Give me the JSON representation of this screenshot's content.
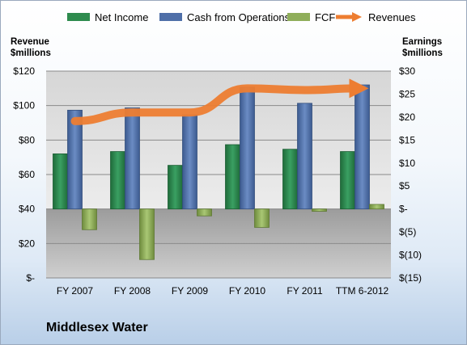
{
  "legend": [
    {
      "key": "net_income",
      "label": "Net Income",
      "color": "#2e8b4e"
    },
    {
      "key": "cfo",
      "label": "Cash from Operations",
      "color": "#4f6fa8"
    },
    {
      "key": "fcf",
      "label": "FCF",
      "color": "#8fae5a"
    },
    {
      "key": "revenues",
      "label": "Revenues",
      "color": "#ed7d31"
    }
  ],
  "left_axis_title": [
    "Revenue",
    "$millions"
  ],
  "right_axis_title": [
    "Earnings",
    "$millions"
  ],
  "company": "Middlesex Water",
  "chart_data": {
    "type": "bar",
    "categories": [
      "FY 2007",
      "FY 2008",
      "FY 2009",
      "FY 2010",
      "FY 2011",
      "TTM 6-2012"
    ],
    "left_axis": {
      "label": "Revenue $millions",
      "range": [
        0,
        120
      ],
      "ticks": [
        "$-",
        "$20",
        "$40",
        "$60",
        "$80",
        "$100",
        "$120"
      ]
    },
    "right_axis": {
      "label": "Earnings $millions",
      "range": [
        -15,
        30
      ],
      "ticks": [
        "$(15)",
        "$(10)",
        "$(5)",
        "$-",
        "$5",
        "$10",
        "$15",
        "$20",
        "$25",
        "$30"
      ]
    },
    "series": [
      {
        "name": "Net Income",
        "axis": "right",
        "type": "bar",
        "values": [
          12.0,
          12.5,
          9.5,
          14.0,
          13.0,
          12.5
        ]
      },
      {
        "name": "Cash from Operations",
        "axis": "right",
        "type": "bar",
        "values": [
          21.5,
          22.0,
          20.5,
          26.5,
          23.0,
          27.0
        ]
      },
      {
        "name": "FCF",
        "axis": "right",
        "type": "bar",
        "values": [
          -4.5,
          -11.0,
          -1.5,
          -4.0,
          -0.5,
          1.0
        ]
      },
      {
        "name": "Revenues",
        "axis": "left",
        "type": "line",
        "values": [
          91,
          96,
          96,
          110,
          109,
          110
        ]
      }
    ],
    "grid": true
  }
}
